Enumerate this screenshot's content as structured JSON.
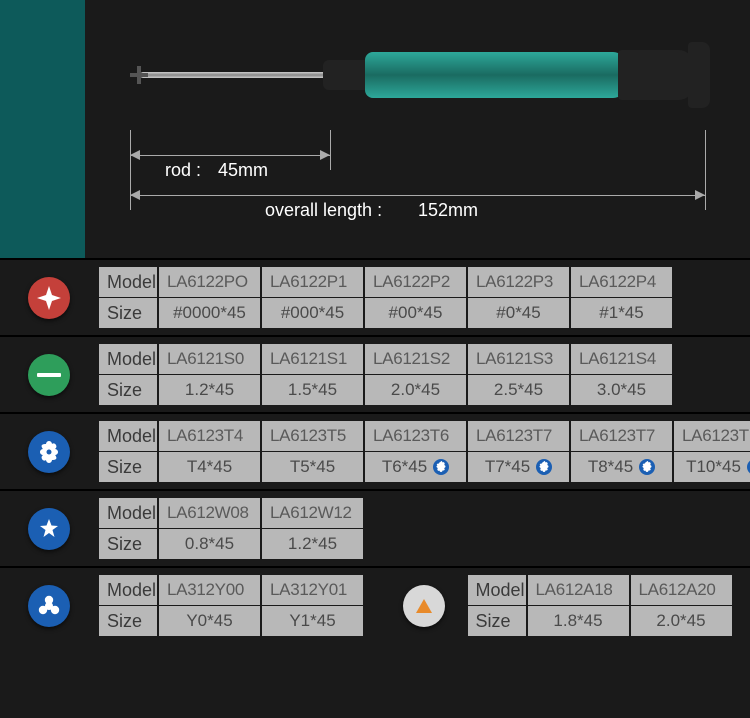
{
  "hero": {
    "rod_label": "rod :",
    "rod_value": "45mm",
    "overall_label": "overall length :",
    "overall_value": "152mm"
  },
  "row_labels": {
    "model": "Model",
    "size": "Size"
  },
  "colors": {
    "phillips": "#c4403a",
    "slotted": "#2e9e5b",
    "torx": "#1b5fb3",
    "penta": "#1b5fb3",
    "tri": "#1b5fb3",
    "triangle_bg": "#d8d8d8",
    "triangle": "#e88a2a"
  },
  "rows": {
    "phillips": {
      "models": [
        "LA6122PO",
        "LA6122P1",
        "LA6122P2",
        "LA6122P3",
        "LA6122P4"
      ],
      "sizes": [
        "#0000*45",
        "#000*45",
        "#00*45",
        "#0*45",
        "#1*45"
      ]
    },
    "slotted": {
      "models": [
        "LA6121S0",
        "LA6121S1",
        "LA6121S2",
        "LA6121S3",
        "LA6121S4"
      ],
      "sizes": [
        "1.2*45",
        "1.5*45",
        "2.0*45",
        "2.5*45",
        "3.0*45"
      ]
    },
    "torx": {
      "models": [
        "LA6123T4",
        "LA6123T5",
        "LA6123T6",
        "LA6123T7",
        "LA6123T7",
        "LA6123T"
      ],
      "sizes": [
        "T4*45",
        "T5*45",
        "T6*45",
        "T7*45",
        "T8*45",
        "T10*45"
      ],
      "star_from_index": 2
    },
    "penta": {
      "models": [
        "LA612W08",
        "LA612W12"
      ],
      "sizes": [
        "0.8*45",
        "1.2*45"
      ]
    },
    "tri": {
      "left": {
        "models": [
          "LA312Y00",
          "LA312Y01"
        ],
        "sizes": [
          "Y0*45",
          "Y1*45"
        ]
      },
      "right": {
        "models": [
          "LA612A18",
          "LA612A20"
        ],
        "sizes": [
          "1.8*45",
          "2.0*45"
        ]
      }
    }
  }
}
